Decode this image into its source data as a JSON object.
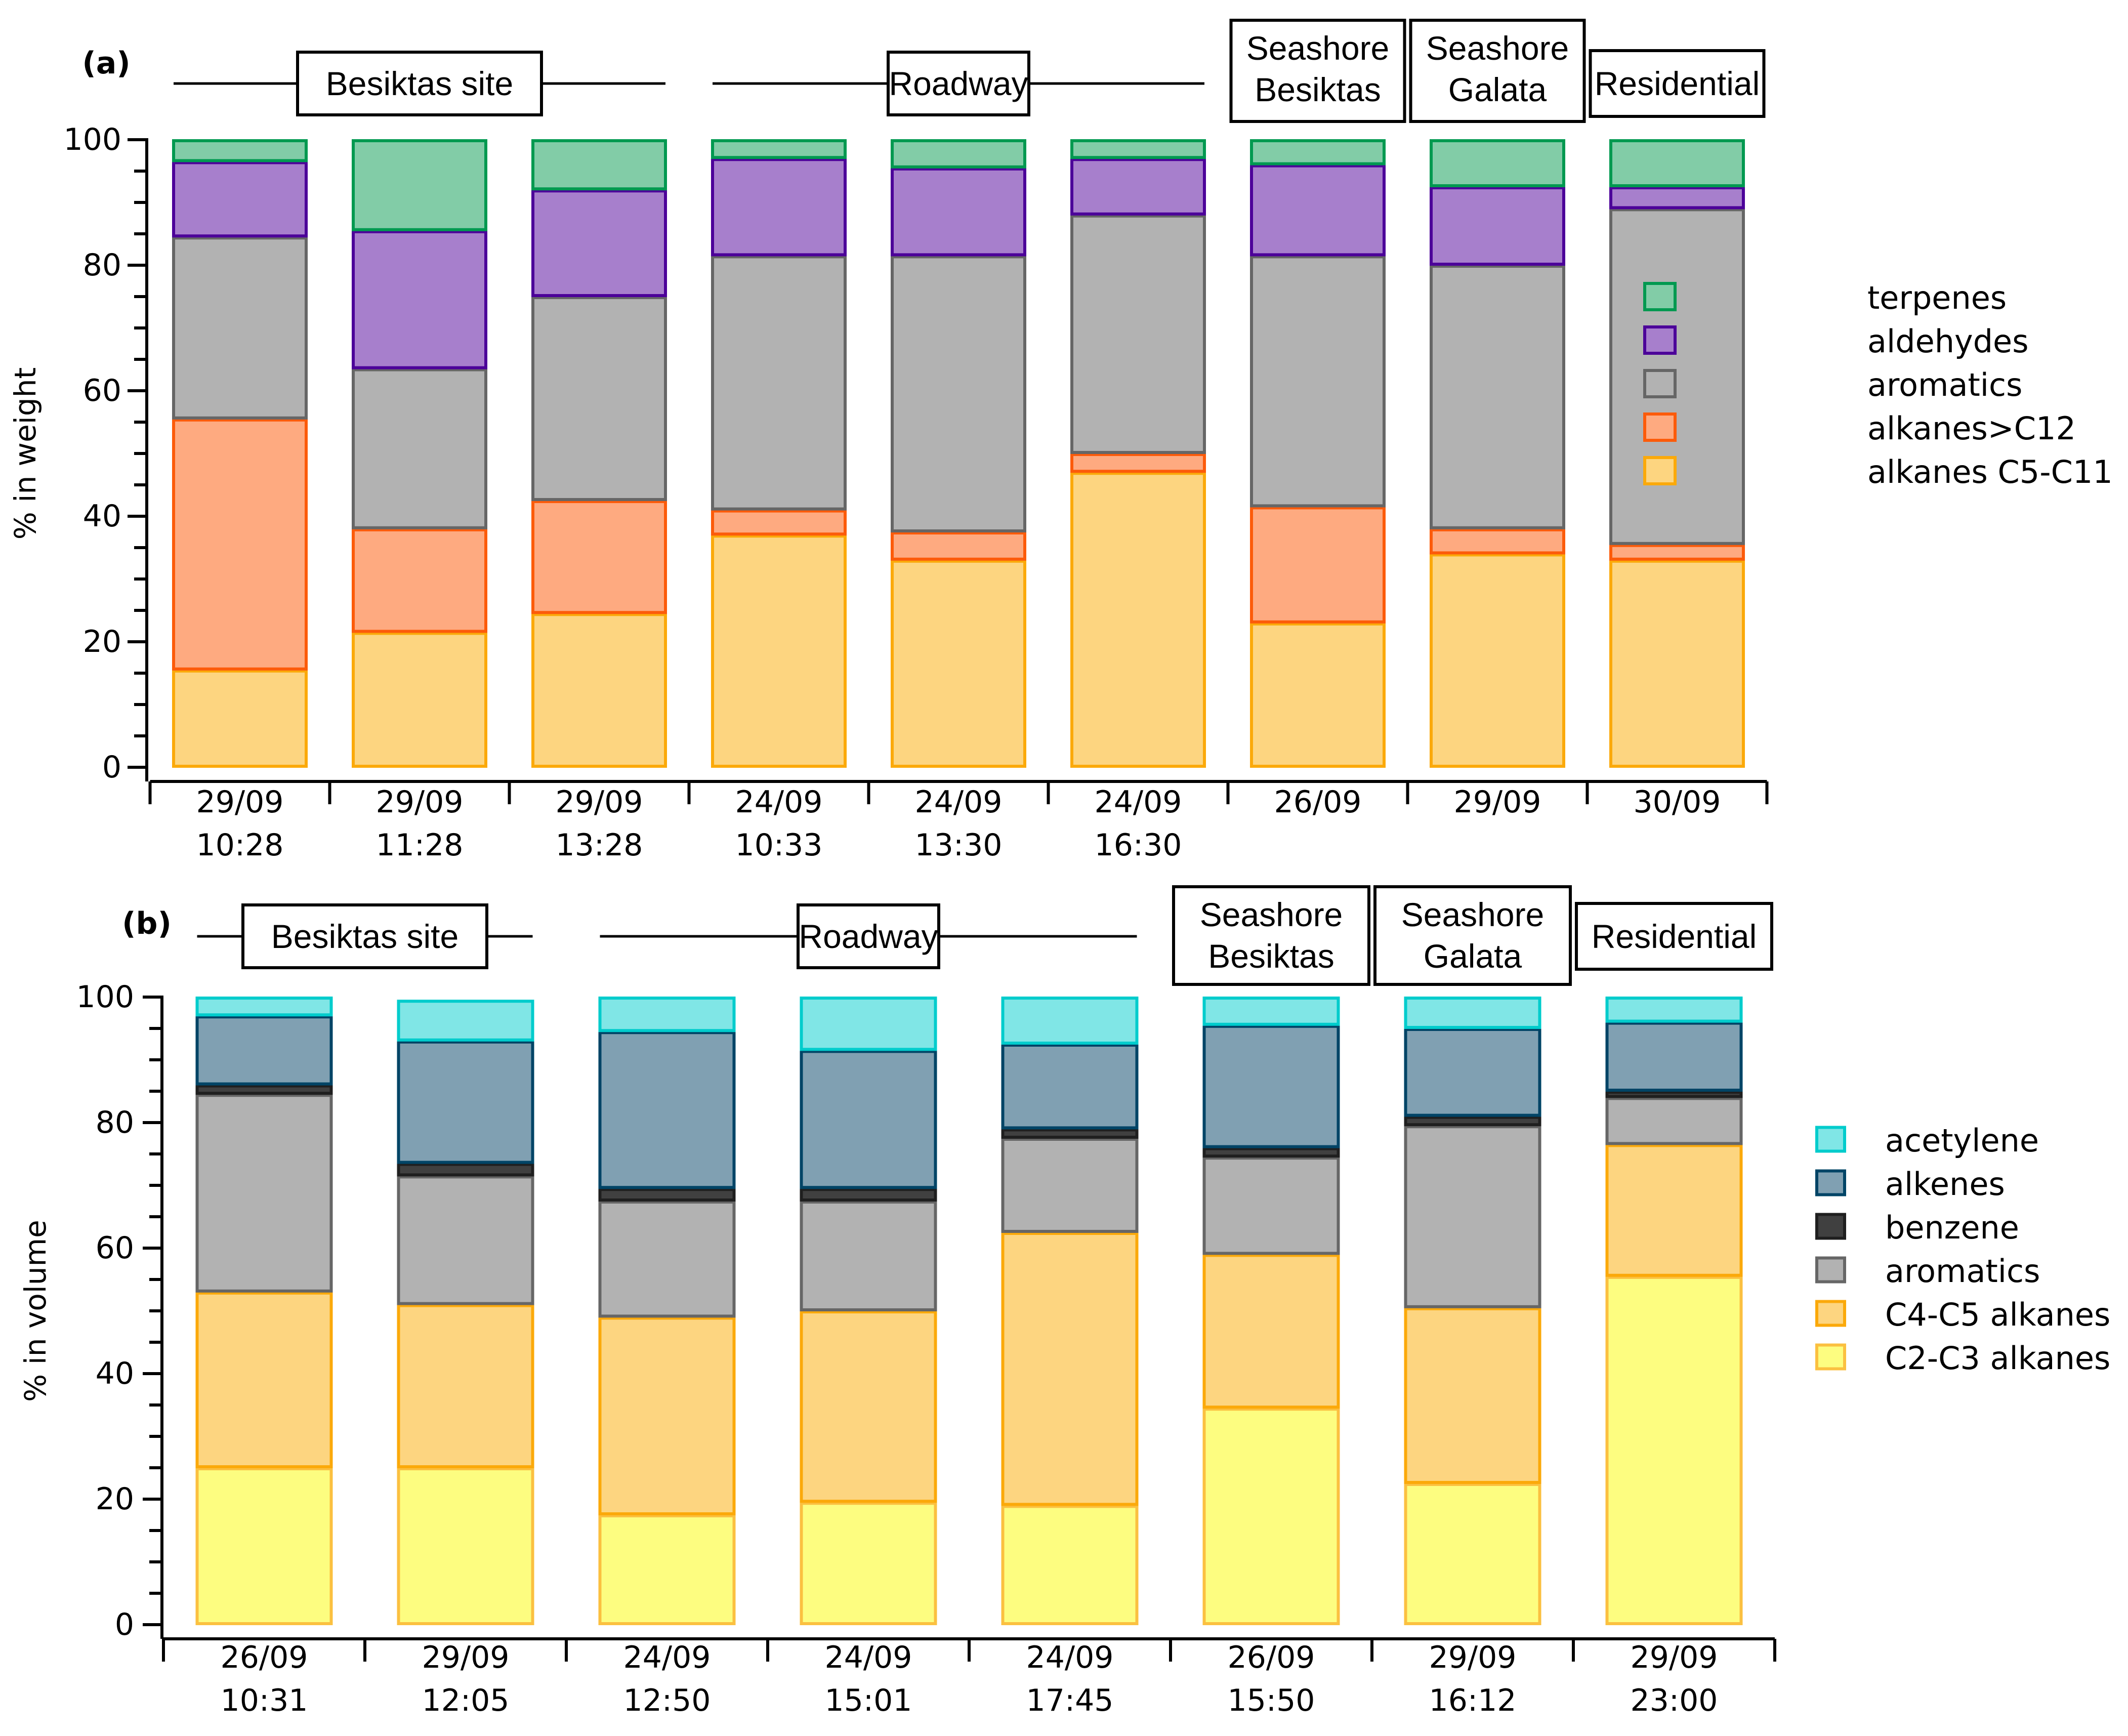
{
  "chart_data": [
    {
      "panel_label": "(a)",
      "type": "bar",
      "stacked": true,
      "title": "",
      "xlabel": "",
      "ylabel": "% in weight",
      "ylim": [
        0,
        100
      ],
      "yticks": [
        0,
        20,
        40,
        60,
        80,
        100
      ],
      "minor_ytick_step": 5,
      "grid": false,
      "legend_position": "right",
      "categories": [
        [
          "29/09",
          "10:28"
        ],
        [
          "29/09",
          "11:28"
        ],
        [
          "29/09",
          "13:28"
        ],
        [
          "24/09",
          "10:33"
        ],
        [
          "24/09",
          "13:30"
        ],
        [
          "24/09",
          "16:30"
        ],
        [
          "26/09",
          ""
        ],
        [
          "29/09",
          ""
        ],
        [
          "30/09",
          ""
        ]
      ],
      "site_groups": [
        {
          "label": [
            "Besiktas site"
          ],
          "from": 0,
          "to": 2,
          "style": "line"
        },
        {
          "label": [
            "Roadway"
          ],
          "from": 3,
          "to": 5,
          "style": "line"
        },
        {
          "label": [
            "Seashore",
            "Besiktas"
          ],
          "from": 6,
          "to": 6,
          "style": "box"
        },
        {
          "label": [
            "Seashore",
            "Galata"
          ],
          "from": 7,
          "to": 7,
          "style": "box"
        },
        {
          "label": [
            "Residential"
          ],
          "from": 8,
          "to": 8,
          "style": "box"
        }
      ],
      "series": [
        {
          "name": "alkanes C5-C11",
          "fill": "#FDD580",
          "stroke": "#FBA90A",
          "values": [
            15.5,
            21.5,
            24.5,
            37,
            33,
            47,
            23,
            34,
            33
          ]
        },
        {
          "name": "alkanes>C12",
          "fill": "#FEAA80",
          "stroke": "#FC5B0A",
          "values": [
            40,
            16.5,
            18,
            4,
            4.5,
            3,
            18.5,
            4,
            2.5
          ]
        },
        {
          "name": "aromatics",
          "fill": "#B2B2B2",
          "stroke": "#666666",
          "values": [
            29,
            25.5,
            32.5,
            40.5,
            44,
            38,
            40,
            42,
            53.5
          ]
        },
        {
          "name": "aldehydes",
          "fill": "#A77FCC",
          "stroke": "#4C0099",
          "values": [
            12,
            22,
            17,
            15.5,
            14,
            9,
            14.5,
            12.5,
            3.5
          ]
        },
        {
          "name": "terpenes",
          "fill": "#82CCA7",
          "stroke": "#009950",
          "values": [
            3.5,
            14.5,
            8,
            3,
            4.5,
            3,
            4,
            7.5,
            7.5
          ]
        }
      ],
      "legend_order": [
        "terpenes",
        "aldehydes",
        "aromatics",
        "alkanes>C12",
        "alkanes C5-C11"
      ]
    },
    {
      "panel_label": "(b)",
      "type": "bar",
      "stacked": true,
      "title": "",
      "xlabel": "",
      "ylabel": "% in volume",
      "ylim": [
        0,
        100
      ],
      "yticks": [
        0,
        20,
        40,
        60,
        80,
        100
      ],
      "minor_ytick_step": 5,
      "grid": false,
      "legend_position": "right",
      "categories": [
        [
          "26/09",
          "10:31"
        ],
        [
          "29/09",
          "12:05"
        ],
        [
          "24/09",
          "12:50"
        ],
        [
          "24/09",
          "15:01"
        ],
        [
          "24/09",
          "17:45"
        ],
        [
          "26/09",
          "15:50"
        ],
        [
          "29/09",
          "16:12"
        ],
        [
          "29/09",
          "23:00"
        ]
      ],
      "site_groups": [
        {
          "label": [
            "Besiktas site"
          ],
          "from": 0,
          "to": 1,
          "style": "line"
        },
        {
          "label": [
            "Roadway"
          ],
          "from": 2,
          "to": 4,
          "style": "line"
        },
        {
          "label": [
            "Seashore",
            "Besiktas"
          ],
          "from": 5,
          "to": 5,
          "style": "box"
        },
        {
          "label": [
            "Seashore",
            "Galata"
          ],
          "from": 6,
          "to": 6,
          "style": "box"
        },
        {
          "label": [
            "Residential"
          ],
          "from": 7,
          "to": 7,
          "style": "box"
        }
      ],
      "series": [
        {
          "name": "C2-C3 alkanes",
          "fill": "#FDFD80",
          "stroke": "#FBC040",
          "values": [
            25,
            25,
            17.5,
            19.5,
            19,
            34.5,
            22.5,
            55.5
          ]
        },
        {
          "name": "C4-C5 alkanes",
          "fill": "#FDD580",
          "stroke": "#FBA90A",
          "values": [
            28,
            26,
            31.5,
            30.5,
            43.5,
            24.5,
            28,
            21
          ]
        },
        {
          "name": "aromatics",
          "fill": "#B2B2B2",
          "stroke": "#666666",
          "values": [
            31.5,
            20.5,
            18.5,
            17.5,
            15,
            15.5,
            29,
            7.5
          ]
        },
        {
          "name": "benzene",
          "fill": "#404040",
          "stroke": "#1F1F1F",
          "values": [
            1.5,
            2,
            2,
            2,
            1.5,
            1.5,
            1.5,
            1
          ]
        },
        {
          "name": "alkenes",
          "fill": "#80A0B2",
          "stroke": "#004466",
          "values": [
            11,
            19.5,
            25,
            22,
            13.5,
            19.5,
            14,
            11
          ]
        },
        {
          "name": "acetylene",
          "fill": "#80E6E6",
          "stroke": "#00CCCC",
          "values": [
            3,
            6.5,
            5.5,
            8.5,
            7.5,
            4.5,
            5,
            4
          ]
        }
      ],
      "legend_order": [
        "acetylene",
        "alkenes",
        "benzene",
        "aromatics",
        "C4-C5 alkanes",
        "C2-C3 alkanes"
      ]
    }
  ]
}
